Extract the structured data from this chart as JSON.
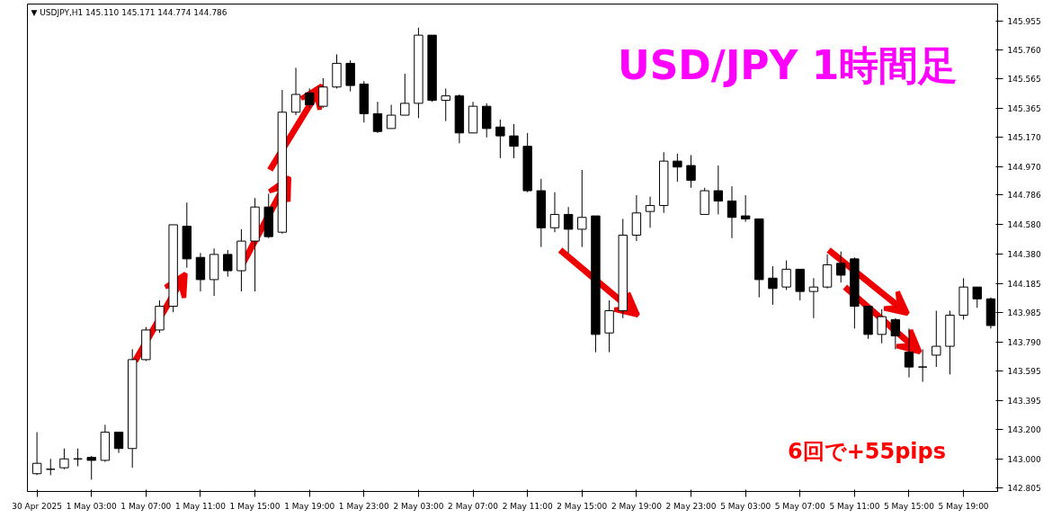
{
  "chart_data": {
    "type": "candlestick",
    "title": "▼ USDJPY,H1  145.110 145.171 144.774 144.786",
    "annotations": [
      "USD/JPY 1時間足",
      "6回で+55pips"
    ],
    "categories": [
      "30 Apr 2025",
      null,
      null,
      null,
      "1 May 03:00",
      null,
      null,
      null,
      "1 May 07:00",
      null,
      null,
      null,
      "1 May 11:00",
      null,
      null,
      null,
      "1 May 15:00",
      null,
      null,
      null,
      "1 May 19:00",
      null,
      null,
      null,
      "1 May 23:00",
      null,
      null,
      null,
      "2 May 03:00",
      null,
      null,
      null,
      "2 May 07:00",
      null,
      null,
      null,
      "2 May 11:00",
      null,
      null,
      null,
      "2 May 15:00",
      null,
      null,
      null,
      "2 May 19:00",
      null,
      null,
      null,
      "2 May 23:00",
      null,
      null,
      null,
      "5 May 03:00",
      null,
      null,
      null,
      "5 May 07:00",
      null,
      null,
      null,
      "5 May 11:00",
      null,
      null,
      null,
      "5 May 15:00",
      null,
      null,
      null,
      "5 May 19:00",
      null,
      null
    ],
    "ohlc": [
      [
        142.9,
        143.18,
        142.89,
        142.97
      ],
      [
        142.93,
        143.0,
        142.89,
        142.93
      ],
      [
        142.94,
        143.07,
        142.93,
        143.0
      ],
      [
        143.0,
        143.07,
        142.95,
        143.0
      ],
      [
        143.01,
        143.02,
        142.86,
        142.99
      ],
      [
        142.99,
        143.23,
        142.98,
        143.18
      ],
      [
        143.18,
        143.18,
        143.04,
        143.07
      ],
      [
        143.07,
        143.74,
        142.94,
        143.67
      ],
      [
        143.67,
        143.89,
        143.66,
        143.87
      ],
      [
        143.87,
        144.07,
        143.85,
        144.03
      ],
      [
        144.03,
        144.58,
        143.99,
        144.58
      ],
      [
        144.57,
        144.73,
        144.29,
        144.35
      ],
      [
        144.36,
        144.39,
        144.13,
        144.21
      ],
      [
        144.21,
        144.42,
        144.1,
        144.38
      ],
      [
        144.38,
        144.41,
        144.23,
        144.27
      ],
      [
        144.27,
        144.55,
        144.13,
        144.47
      ],
      [
        144.47,
        144.76,
        144.13,
        144.7
      ],
      [
        144.7,
        144.79,
        144.49,
        144.5
      ],
      [
        144.53,
        145.49,
        144.52,
        145.34
      ],
      [
        145.34,
        145.64,
        145.32,
        145.46
      ],
      [
        145.47,
        145.5,
        145.37,
        145.39
      ],
      [
        145.38,
        145.57,
        145.37,
        145.51
      ],
      [
        145.51,
        145.73,
        145.5,
        145.67
      ],
      [
        145.67,
        145.69,
        145.48,
        145.52
      ],
      [
        145.53,
        145.55,
        145.27,
        145.33
      ],
      [
        145.33,
        145.41,
        145.2,
        145.21
      ],
      [
        145.23,
        145.39,
        145.23,
        145.32
      ],
      [
        145.32,
        145.6,
        145.32,
        145.4
      ],
      [
        145.4,
        145.91,
        145.3,
        145.86
      ],
      [
        145.86,
        145.86,
        145.41,
        145.42
      ],
      [
        145.42,
        145.5,
        145.28,
        145.45
      ],
      [
        145.45,
        145.46,
        145.13,
        145.2
      ],
      [
        145.2,
        145.41,
        145.2,
        145.38
      ],
      [
        145.38,
        145.4,
        145.17,
        145.23
      ],
      [
        145.24,
        145.29,
        145.03,
        145.18
      ],
      [
        145.18,
        145.26,
        145.03,
        145.11
      ],
      [
        145.11,
        145.2,
        144.8,
        144.81
      ],
      [
        144.81,
        144.89,
        144.43,
        144.56
      ],
      [
        144.56,
        144.8,
        144.53,
        144.65
      ],
      [
        144.65,
        144.7,
        144.39,
        144.55
      ],
      [
        144.55,
        144.95,
        144.43,
        144.63
      ],
      [
        144.64,
        144.64,
        143.72,
        143.84
      ],
      [
        143.85,
        144.07,
        143.72,
        144.0
      ],
      [
        144.0,
        144.62,
        143.95,
        144.51
      ],
      [
        144.51,
        144.78,
        144.47,
        144.66
      ],
      [
        144.67,
        144.77,
        144.56,
        144.71
      ],
      [
        144.71,
        145.07,
        144.66,
        145.01
      ],
      [
        145.01,
        145.06,
        144.87,
        144.97
      ],
      [
        144.98,
        145.05,
        144.83,
        144.88
      ],
      [
        144.65,
        144.83,
        144.65,
        144.81
      ],
      [
        144.81,
        144.98,
        144.65,
        144.74
      ],
      [
        144.74,
        144.84,
        144.49,
        144.63
      ],
      [
        144.64,
        144.78,
        144.6,
        144.62
      ],
      [
        144.62,
        144.62,
        144.09,
        144.21
      ],
      [
        144.22,
        144.3,
        144.04,
        144.15
      ],
      [
        144.16,
        144.34,
        144.14,
        144.28
      ],
      [
        144.28,
        144.28,
        144.07,
        144.13
      ],
      [
        144.13,
        144.22,
        143.95,
        144.16
      ],
      [
        144.16,
        144.38,
        144.15,
        144.31
      ],
      [
        144.32,
        144.4,
        144.19,
        144.24
      ],
      [
        144.35,
        144.36,
        143.88,
        144.03
      ],
      [
        144.03,
        144.03,
        143.81,
        143.84
      ],
      [
        143.84,
        144.01,
        143.78,
        143.96
      ],
      [
        143.94,
        143.95,
        143.74,
        143.83
      ],
      [
        143.72,
        143.88,
        143.55,
        143.62
      ],
      [
        143.62,
        143.74,
        143.52,
        143.62
      ],
      [
        143.7,
        144.0,
        143.62,
        143.76
      ],
      [
        143.76,
        144.0,
        143.57,
        143.97
      ],
      [
        143.97,
        144.22,
        143.94,
        144.16
      ],
      [
        144.16,
        144.16,
        144.02,
        144.08
      ],
      [
        144.08,
        144.09,
        143.88,
        143.9
      ]
    ],
    "colors": [
      "#ffffff",
      "#000000",
      "#ffffff",
      "#000000",
      "#000000",
      "#ffffff",
      "#000000",
      "#ffffff",
      "#ffffff",
      "#ffffff",
      "#ffffff",
      "#000000",
      "#000000",
      "#ffffff",
      "#000000",
      "#ffffff",
      "#ffffff",
      "#000000",
      "#ffffff",
      "#ffffff",
      "#000000",
      "#ffffff",
      "#ffffff",
      "#000000",
      "#000000",
      "#000000",
      "#ffffff",
      "#ffffff",
      "#ffffff",
      "#000000",
      "#ffffff",
      "#000000",
      "#ffffff",
      "#000000",
      "#000000",
      "#000000",
      "#000000",
      "#000000",
      "#ffffff",
      "#000000",
      "#ffffff",
      "#000000",
      "#ffffff",
      "#ffffff",
      "#ffffff",
      "#ffffff",
      "#ffffff",
      "#000000",
      "#000000",
      "#ffffff",
      "#000000",
      "#000000",
      "#000000",
      "#000000",
      "#000000",
      "#ffffff",
      "#000000",
      "#ffffff",
      "#ffffff",
      "#000000",
      "#000000",
      "#000000",
      "#ffffff",
      "#000000",
      "#000000",
      "#000000",
      "#ffffff",
      "#ffffff",
      "#ffffff",
      "#000000",
      "#000000"
    ],
    "ylim": [
      142.78,
      146.07
    ],
    "yticks": [
      {
        "value": 142.805,
        "label": "142.805"
      },
      {
        "value": 143.0,
        "label": "143.000"
      },
      {
        "value": 143.2,
        "label": "143.200"
      },
      {
        "value": 143.395,
        "label": "143.395"
      },
      {
        "value": 143.595,
        "label": "143.595"
      },
      {
        "value": 143.79,
        "label": "143.790"
      },
      {
        "value": 143.985,
        "label": "143.985"
      },
      {
        "value": 144.185,
        "label": "144.185"
      },
      {
        "value": 144.38,
        "label": "144.380"
      },
      {
        "value": 144.58,
        "label": "144.580"
      },
      {
        "value": 144.786,
        "label": "144.786"
      },
      {
        "value": 144.97,
        "label": "144.970"
      },
      {
        "value": 145.17,
        "label": "145.170"
      },
      {
        "value": 145.365,
        "label": "145.365"
      },
      {
        "value": 145.565,
        "label": "145.565"
      },
      {
        "value": 145.76,
        "label": "145.760"
      },
      {
        "value": 145.955,
        "label": "145.955"
      }
    ]
  }
}
